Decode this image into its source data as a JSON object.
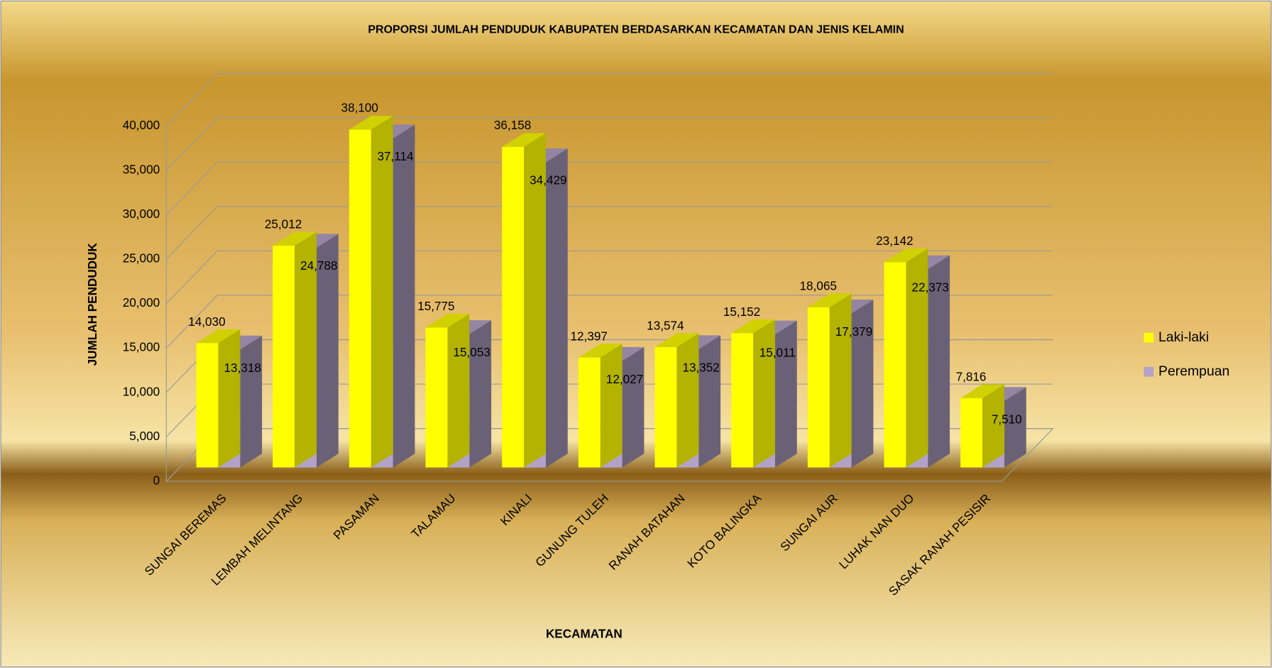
{
  "chart_data": {
    "type": "bar3d",
    "title": "PROPORSI JUMLAH PENDUDUK KABUPATEN BERDASARKAN KECAMATAN DAN JENIS KELAMIN",
    "x_label": "KECAMATAN",
    "y_label": "JUMLAH PENDUDUK",
    "categories": [
      "SUNGAI BEREMAS",
      "LEMBAH MELINTANG",
      "PASAMAN",
      "TALAMAU",
      "KINALI",
      "GUNUNG TULEH",
      "RANAH BATAHAN",
      "KOTO BALINGKA",
      "SUNGAI AUR",
      "LUHAK NAN DUO",
      "SASAK RANAH PESISIR"
    ],
    "series": [
      {
        "name": "Laki-laki",
        "color": "#ffff00",
        "values": [
          14030,
          25012,
          38100,
          15775,
          36158,
          12397,
          13574,
          15152,
          18065,
          23142,
          7816
        ],
        "value_labels": [
          "14,030",
          "25,012",
          "38,100",
          "15,775",
          "36,158",
          "12,397",
          "13,574",
          "15,152",
          "18,065",
          "23,142",
          "7,816"
        ]
      },
      {
        "name": "Perempuan",
        "color": "#b3a2c7",
        "values": [
          13318,
          24788,
          37114,
          15053,
          34429,
          12027,
          13352,
          15011,
          17379,
          22373,
          7510
        ],
        "value_labels": [
          "13,318",
          "24,788",
          "37,114",
          "15,053",
          "34,429",
          "12,027",
          "13,352",
          "15,011",
          "17,379",
          "22,373",
          "7,510"
        ]
      }
    ],
    "ylim": [
      0,
      40000
    ],
    "yticks": [
      0,
      {
        "value": 5000,
        "label": "5,000"
      },
      {
        "value": 10000,
        "label": "10,000"
      },
      {
        "value": 15000,
        "label": "15,000"
      },
      {
        "value": 20000,
        "label": "20,000"
      },
      {
        "value": 25000,
        "label": "25,000"
      },
      {
        "value": 30000,
        "label": "30,000"
      },
      {
        "value": 35000,
        "label": "35,000"
      },
      {
        "value": 40000,
        "label": "40,000"
      }
    ],
    "grid": true,
    "legend": "right"
  }
}
